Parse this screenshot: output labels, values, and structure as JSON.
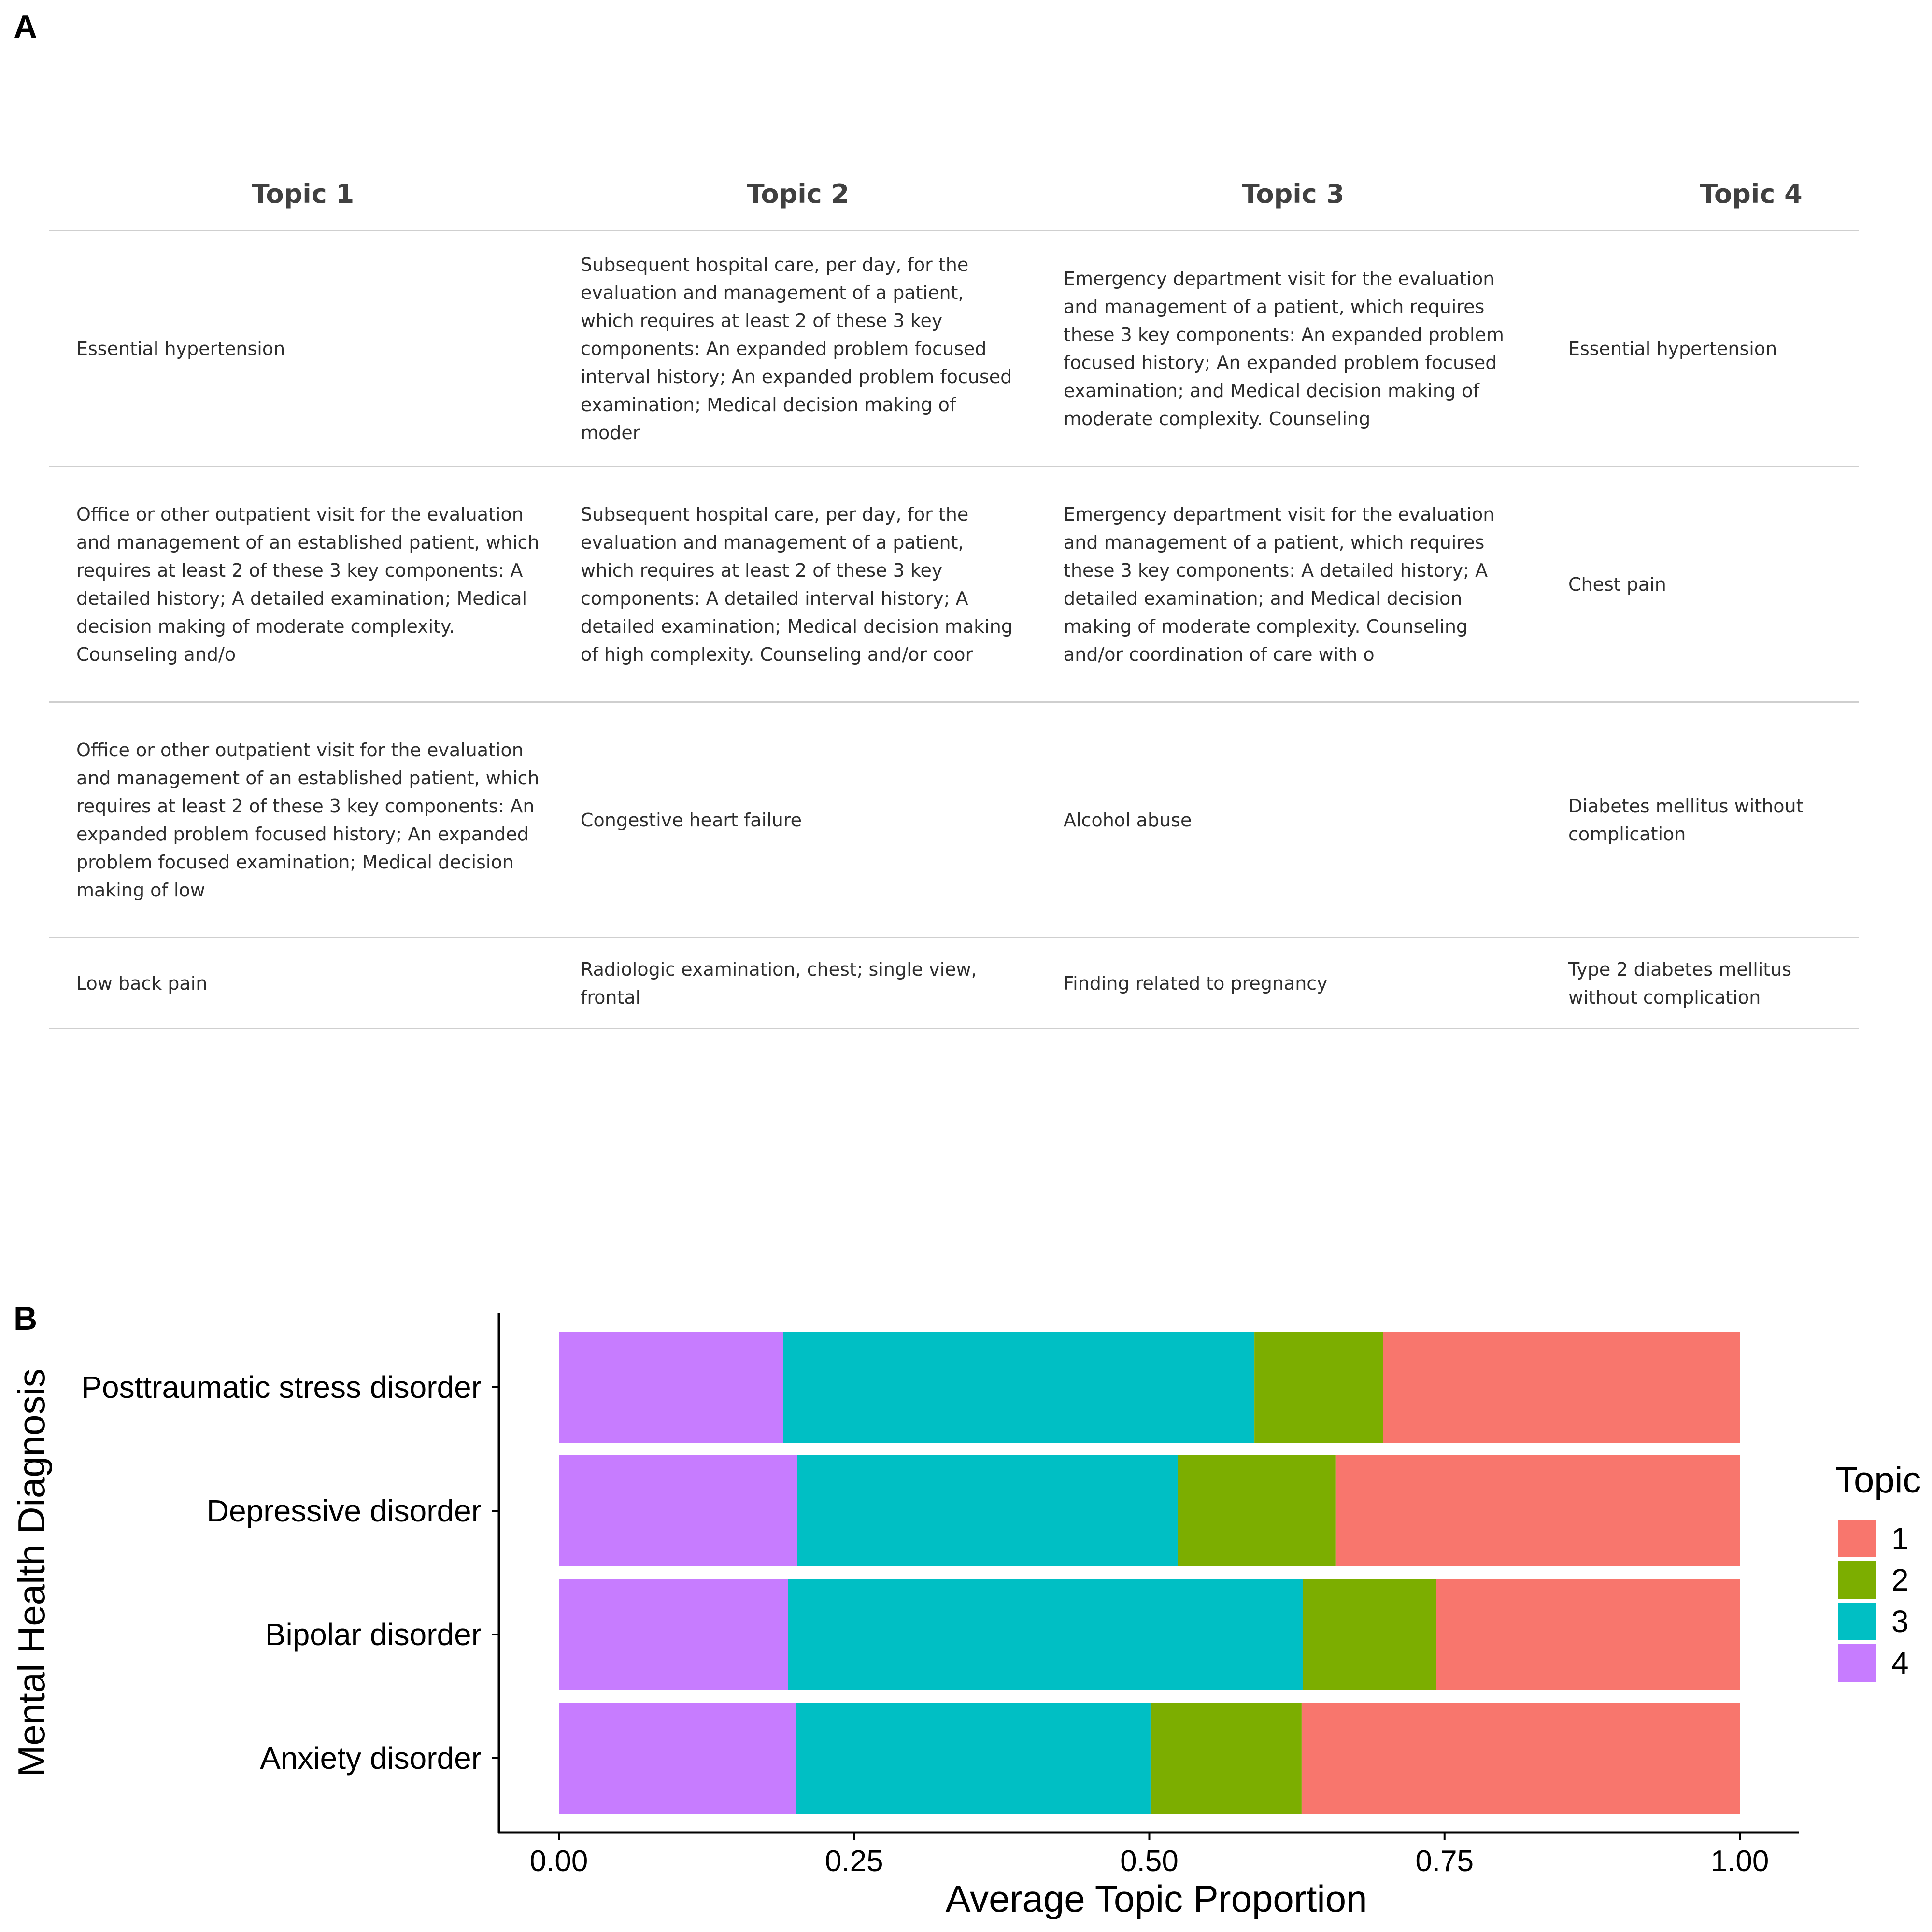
{
  "panel_a": {
    "letter": "A",
    "columns": [
      "Topic 1",
      "Topic 2",
      "Topic 3",
      "Topic 4"
    ],
    "rows": [
      [
        "Essential hypertension",
        "Subsequent hospital care, per day, for the evaluation and management of a patient, which requires at least 2 of these 3 key components: An expanded problem focused interval history; An expanded problem focused examination; Medical decision making of moder",
        "Emergency department visit for the evaluation and management of a patient, which requires these 3 key components: An expanded problem focused history; An expanded problem focused examination; and Medical decision making of moderate complexity. Counseling",
        "Essential hypertension"
      ],
      [
        "Office or other outpatient visit for the evaluation and management of an established patient, which requires at least 2 of these 3 key components: A detailed history; A detailed examination; Medical decision making of moderate complexity. Counseling and/o",
        "Subsequent hospital care, per day, for the evaluation and management of a patient, which requires at least 2 of these 3 key components: A detailed interval history; A detailed examination; Medical decision making of high complexity. Counseling and/or coor",
        "Emergency department visit for the evaluation and management of a patient, which requires these 3 key components: A detailed history; A detailed examination; and Medical decision making of moderate complexity. Counseling and/or coordination of care with o",
        "Chest pain"
      ],
      [
        "Office or other outpatient visit for the evaluation and management of an established patient, which requires at least 2 of these 3 key components: An expanded problem focused history; An expanded problem focused examination; Medical decision making of low",
        "Congestive heart failure",
        "Alcohol abuse",
        "Diabetes mellitus without complication"
      ],
      [
        "Low back pain",
        "Radiologic examination, chest; single view, frontal",
        "Finding related to pregnancy",
        "Type 2 diabetes mellitus without complication"
      ]
    ]
  },
  "panel_b": {
    "letter": "B"
  },
  "chart_data": {
    "type": "bar",
    "orientation": "horizontal",
    "stacked": true,
    "xlabel": "Average Topic Proportion",
    "ylabel": "Mental Health Diagnosis",
    "xlim": [
      0,
      1
    ],
    "x_ticks": [
      "0.00",
      "0.25",
      "0.50",
      "0.75",
      "1.00"
    ],
    "x_tick_values": [
      0,
      0.25,
      0.5,
      0.75,
      1
    ],
    "categories": [
      "Posttraumatic stress disorder",
      "Depressive disorder",
      "Bipolar disorder",
      "Anxiety disorder"
    ],
    "stack_order": [
      "4",
      "3",
      "2",
      "1"
    ],
    "legend": {
      "title": "Topic",
      "placement": "right",
      "entries": [
        "1",
        "2",
        "3",
        "4"
      ]
    },
    "series": [
      {
        "name": "1",
        "color": "#F8766D",
        "values": [
          0.302,
          0.342,
          0.257,
          0.371
        ]
      },
      {
        "name": "2",
        "color": "#7CAE00",
        "values": [
          0.109,
          0.134,
          0.113,
          0.128
        ]
      },
      {
        "name": "3",
        "color": "#00BFC4",
        "values": [
          0.399,
          0.322,
          0.436,
          0.3
        ]
      },
      {
        "name": "4",
        "color": "#C77CFF",
        "values": [
          0.19,
          0.202,
          0.194,
          0.201
        ]
      }
    ],
    "grid": false
  }
}
